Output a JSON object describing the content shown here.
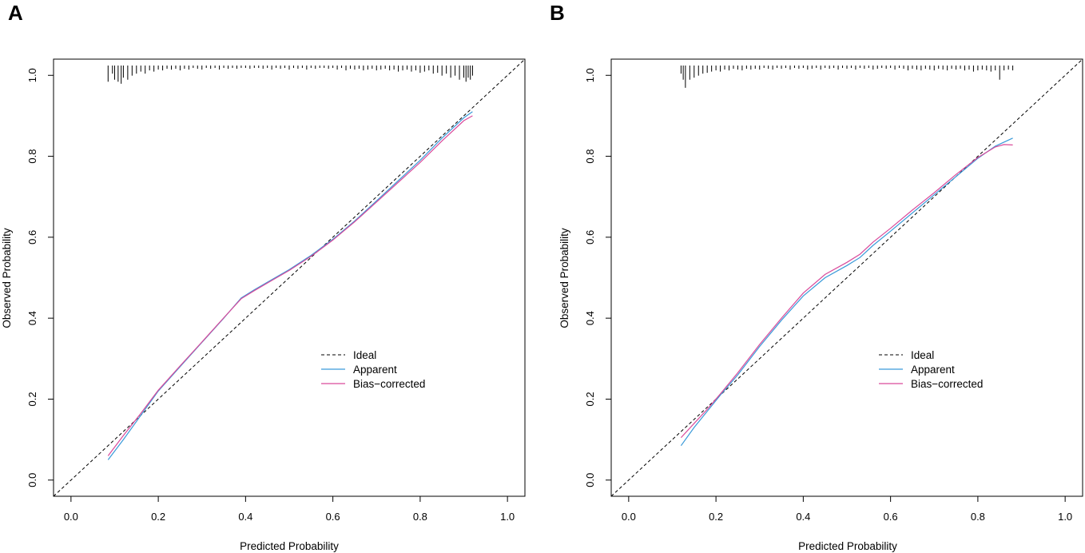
{
  "colors": {
    "ideal": "#000000",
    "apparent": "#3a9ad9",
    "bias_corrected": "#d94a9a",
    "rug": "#000000",
    "frame": "#000000"
  },
  "chart_data": [
    {
      "panel": "A",
      "type": "line",
      "title": "",
      "xlabel": "Predicted Probability",
      "ylabel": "Observed  Probability",
      "xlim": [
        -0.04,
        1.04
      ],
      "ylim": [
        -0.04,
        1.04
      ],
      "xticks": [
        0.0,
        0.2,
        0.4,
        0.6,
        0.8,
        1.0
      ],
      "yticks": [
        0.0,
        0.2,
        0.4,
        0.6,
        0.8,
        1.0
      ],
      "xtick_labels": [
        "0.0",
        "0.2",
        "0.4",
        "0.6",
        "0.8",
        "1.0"
      ],
      "ytick_labels": [
        "0.0",
        "0.2",
        "0.4",
        "0.6",
        "0.8",
        "1.0"
      ],
      "legend": {
        "position": "center-right",
        "entries": [
          "Ideal",
          "Apparent",
          "Bias−corrected"
        ]
      },
      "series": [
        {
          "name": "Ideal",
          "style": "dashed",
          "x": [
            -0.04,
            1.04
          ],
          "y": [
            -0.04,
            1.04
          ]
        },
        {
          "name": "Apparent",
          "style": "solid",
          "x": [
            0.085,
            0.12,
            0.16,
            0.2,
            0.25,
            0.3,
            0.35,
            0.39,
            0.42,
            0.46,
            0.5,
            0.55,
            0.6,
            0.65,
            0.7,
            0.75,
            0.8,
            0.85,
            0.9,
            0.92
          ],
          "y": [
            0.05,
            0.1,
            0.16,
            0.22,
            0.28,
            0.34,
            0.4,
            0.45,
            0.47,
            0.495,
            0.52,
            0.555,
            0.595,
            0.64,
            0.69,
            0.74,
            0.79,
            0.845,
            0.895,
            0.91
          ]
        },
        {
          "name": "Bias−corrected",
          "style": "solid",
          "x": [
            0.085,
            0.12,
            0.16,
            0.2,
            0.25,
            0.3,
            0.35,
            0.39,
            0.42,
            0.46,
            0.5,
            0.55,
            0.6,
            0.65,
            0.7,
            0.75,
            0.8,
            0.85,
            0.9,
            0.92
          ],
          "y": [
            0.06,
            0.11,
            0.165,
            0.222,
            0.282,
            0.341,
            0.401,
            0.448,
            0.468,
            0.493,
            0.518,
            0.553,
            0.593,
            0.638,
            0.687,
            0.736,
            0.785,
            0.838,
            0.888,
            0.9
          ]
        }
      ],
      "rug": {
        "x": [
          0.085,
          0.095,
          0.1,
          0.108,
          0.115,
          0.12,
          0.13,
          0.14,
          0.15,
          0.16,
          0.17,
          0.18,
          0.19,
          0.2,
          0.21,
          0.22,
          0.23,
          0.24,
          0.25,
          0.26,
          0.27,
          0.28,
          0.29,
          0.3,
          0.31,
          0.32,
          0.33,
          0.34,
          0.35,
          0.36,
          0.37,
          0.38,
          0.39,
          0.4,
          0.41,
          0.42,
          0.43,
          0.44,
          0.45,
          0.46,
          0.47,
          0.48,
          0.49,
          0.5,
          0.51,
          0.52,
          0.53,
          0.54,
          0.55,
          0.56,
          0.57,
          0.58,
          0.59,
          0.6,
          0.61,
          0.62,
          0.63,
          0.64,
          0.65,
          0.66,
          0.67,
          0.68,
          0.69,
          0.7,
          0.71,
          0.72,
          0.73,
          0.74,
          0.75,
          0.76,
          0.77,
          0.78,
          0.79,
          0.8,
          0.81,
          0.82,
          0.83,
          0.84,
          0.85,
          0.86,
          0.87,
          0.88,
          0.89,
          0.9,
          0.905,
          0.91,
          0.915,
          0.92
        ],
        "length": [
          0.04,
          0.02,
          0.035,
          0.04,
          0.045,
          0.03,
          0.035,
          0.025,
          0.02,
          0.015,
          0.02,
          0.012,
          0.015,
          0.01,
          0.012,
          0.008,
          0.01,
          0.008,
          0.012,
          0.008,
          0.01,
          0.006,
          0.008,
          0.01,
          0.006,
          0.008,
          0.006,
          0.01,
          0.006,
          0.008,
          0.006,
          0.008,
          0.006,
          0.006,
          0.008,
          0.006,
          0.006,
          0.008,
          0.006,
          0.01,
          0.006,
          0.008,
          0.006,
          0.01,
          0.006,
          0.008,
          0.006,
          0.01,
          0.006,
          0.008,
          0.006,
          0.006,
          0.008,
          0.006,
          0.01,
          0.006,
          0.012,
          0.008,
          0.01,
          0.008,
          0.012,
          0.01,
          0.008,
          0.012,
          0.01,
          0.008,
          0.012,
          0.01,
          0.015,
          0.012,
          0.01,
          0.015,
          0.012,
          0.018,
          0.015,
          0.012,
          0.02,
          0.018,
          0.025,
          0.02,
          0.03,
          0.025,
          0.035,
          0.03,
          0.04,
          0.03,
          0.035,
          0.025
        ]
      }
    },
    {
      "panel": "B",
      "type": "line",
      "title": "",
      "xlabel": "Predicted Probability",
      "ylabel": "Observed  Probability",
      "xlim": [
        -0.04,
        1.04
      ],
      "ylim": [
        -0.04,
        1.04
      ],
      "xticks": [
        0.0,
        0.2,
        0.4,
        0.6,
        0.8,
        1.0
      ],
      "yticks": [
        0.0,
        0.2,
        0.4,
        0.6,
        0.8,
        1.0
      ],
      "xtick_labels": [
        "0.0",
        "0.2",
        "0.4",
        "0.6",
        "0.8",
        "1.0"
      ],
      "ytick_labels": [
        "0.0",
        "0.2",
        "0.4",
        "0.6",
        "0.8",
        "1.0"
      ],
      "legend": {
        "position": "center-right",
        "entries": [
          "Ideal",
          "Apparent",
          "Bias−corrected"
        ]
      },
      "series": [
        {
          "name": "Ideal",
          "style": "dashed",
          "x": [
            -0.04,
            1.04
          ],
          "y": [
            -0.04,
            1.04
          ]
        },
        {
          "name": "Apparent",
          "style": "solid",
          "x": [
            0.12,
            0.15,
            0.18,
            0.21,
            0.25,
            0.3,
            0.35,
            0.4,
            0.45,
            0.5,
            0.53,
            0.56,
            0.6,
            0.65,
            0.7,
            0.75,
            0.8,
            0.84,
            0.88
          ],
          "y": [
            0.085,
            0.13,
            0.17,
            0.21,
            0.26,
            0.33,
            0.395,
            0.455,
            0.5,
            0.53,
            0.55,
            0.58,
            0.615,
            0.66,
            0.705,
            0.75,
            0.795,
            0.825,
            0.845
          ]
        },
        {
          "name": "Bias−corrected",
          "style": "solid",
          "x": [
            0.12,
            0.15,
            0.18,
            0.21,
            0.25,
            0.3,
            0.35,
            0.4,
            0.45,
            0.5,
            0.53,
            0.56,
            0.6,
            0.65,
            0.7,
            0.75,
            0.8,
            0.84,
            0.86,
            0.88
          ],
          "y": [
            0.105,
            0.14,
            0.175,
            0.213,
            0.265,
            0.335,
            0.4,
            0.462,
            0.508,
            0.538,
            0.558,
            0.588,
            0.622,
            0.667,
            0.71,
            0.755,
            0.797,
            0.823,
            0.829,
            0.828
          ]
        }
      ],
      "rug": {
        "x": [
          0.12,
          0.125,
          0.13,
          0.14,
          0.15,
          0.16,
          0.17,
          0.18,
          0.19,
          0.2,
          0.21,
          0.22,
          0.23,
          0.24,
          0.25,
          0.26,
          0.27,
          0.28,
          0.29,
          0.3,
          0.31,
          0.32,
          0.33,
          0.34,
          0.35,
          0.36,
          0.37,
          0.38,
          0.39,
          0.4,
          0.41,
          0.42,
          0.43,
          0.44,
          0.45,
          0.46,
          0.47,
          0.48,
          0.49,
          0.5,
          0.51,
          0.52,
          0.53,
          0.54,
          0.55,
          0.56,
          0.57,
          0.58,
          0.59,
          0.6,
          0.61,
          0.62,
          0.63,
          0.64,
          0.65,
          0.66,
          0.67,
          0.68,
          0.69,
          0.7,
          0.71,
          0.72,
          0.73,
          0.74,
          0.75,
          0.76,
          0.77,
          0.78,
          0.79,
          0.8,
          0.81,
          0.82,
          0.83,
          0.84,
          0.85,
          0.86,
          0.87,
          0.88
        ],
        "length": [
          0.02,
          0.035,
          0.055,
          0.035,
          0.03,
          0.025,
          0.02,
          0.018,
          0.015,
          0.012,
          0.015,
          0.01,
          0.012,
          0.008,
          0.01,
          0.012,
          0.008,
          0.01,
          0.008,
          0.01,
          0.006,
          0.008,
          0.01,
          0.006,
          0.008,
          0.006,
          0.01,
          0.006,
          0.008,
          0.006,
          0.01,
          0.008,
          0.006,
          0.01,
          0.006,
          0.008,
          0.006,
          0.01,
          0.006,
          0.008,
          0.006,
          0.01,
          0.006,
          0.008,
          0.006,
          0.01,
          0.008,
          0.006,
          0.008,
          0.006,
          0.01,
          0.006,
          0.008,
          0.012,
          0.008,
          0.01,
          0.012,
          0.008,
          0.01,
          0.012,
          0.008,
          0.01,
          0.012,
          0.008,
          0.01,
          0.008,
          0.012,
          0.01,
          0.015,
          0.012,
          0.01,
          0.012,
          0.015,
          0.012,
          0.035,
          0.012,
          0.01,
          0.012
        ]
      }
    }
  ]
}
